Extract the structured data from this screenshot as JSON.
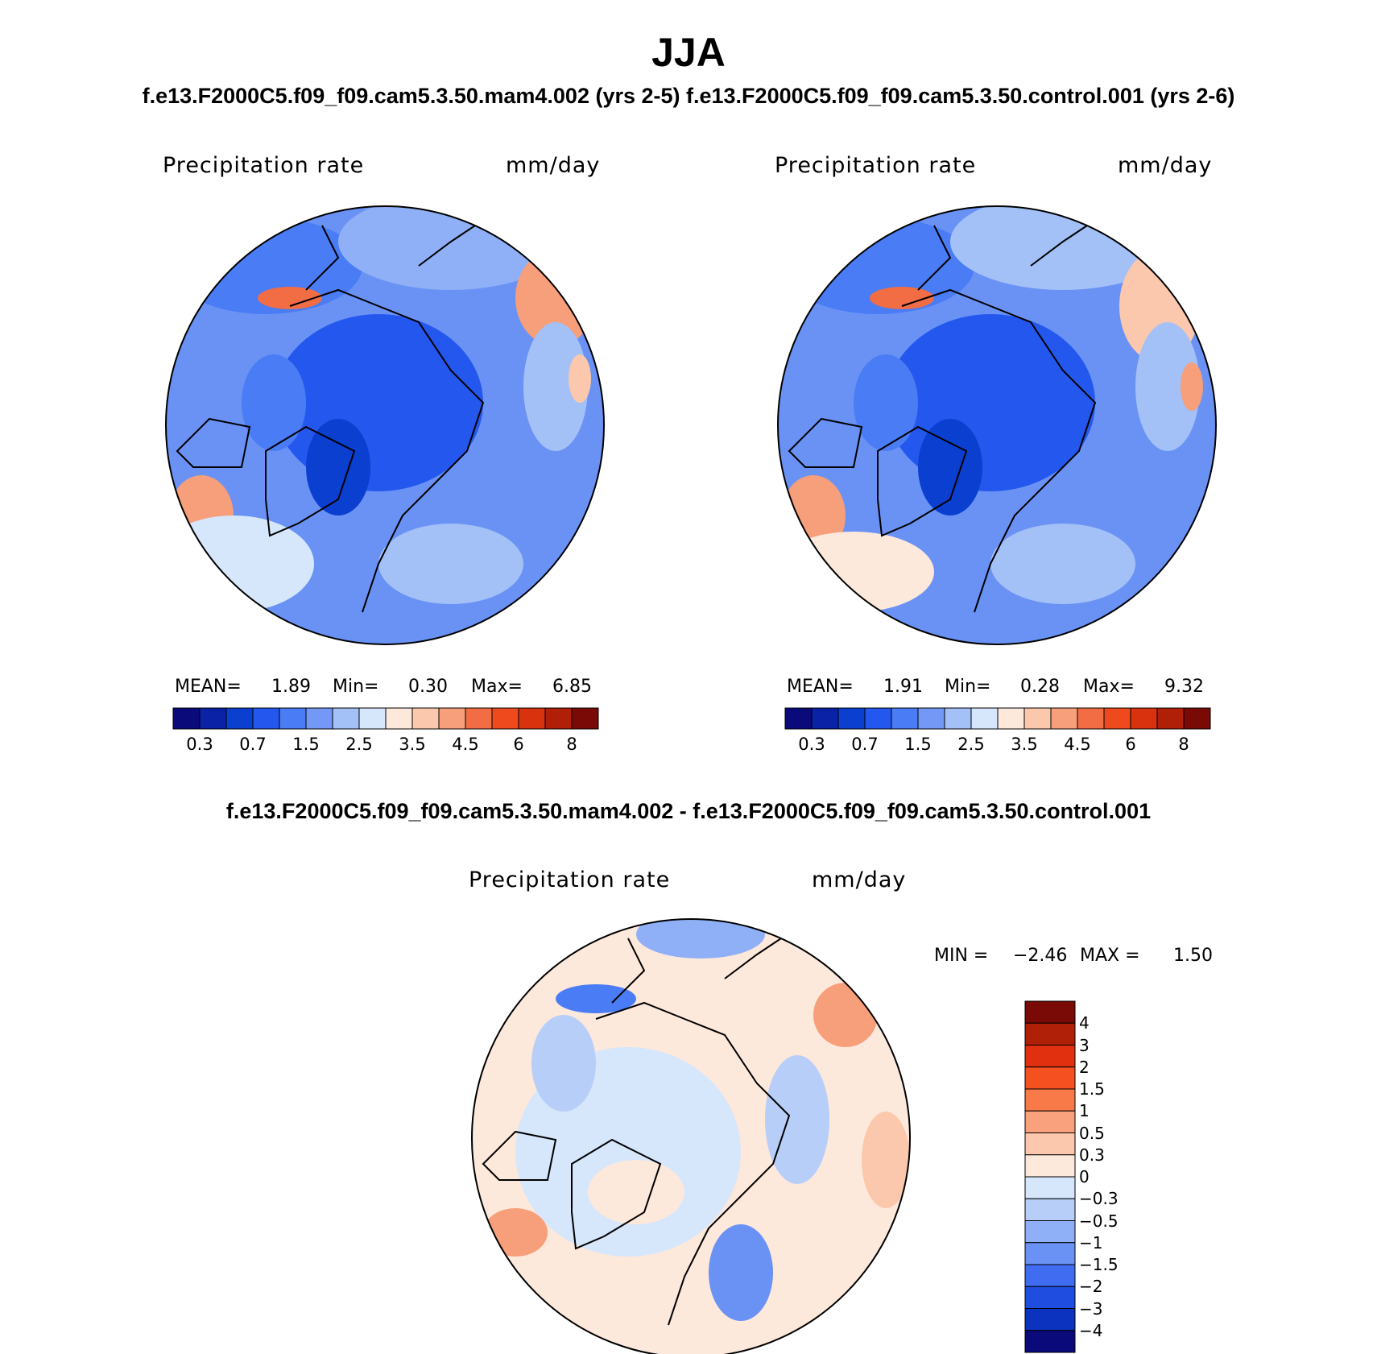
{
  "title": "JJA",
  "top_subtitle": "f.e13.F2000C5.f09_f09.cam5.3.50.mam4.002 (yrs 2-5) f.e13.F2000C5.f09_f09.cam5.3.50.control.001 (yrs 2-6)",
  "diff_subtitle": "f.e13.F2000C5.f09_f09.cam5.3.50.mam4.002 - f.e13.F2000C5.f09_f09.cam5.3.50.control.001",
  "panels": [
    {
      "variable": "Precipitation rate",
      "units": "mm/day",
      "mean_label": "MEAN=",
      "mean": "1.89",
      "min_label": "Min=",
      "min": "0.30",
      "max_label": "Max=",
      "max": "6.85"
    },
    {
      "variable": "Precipitation rate",
      "units": "mm/day",
      "mean_label": "MEAN=",
      "mean": "1.91",
      "min_label": "Min=",
      "min": "0.28",
      "max_label": "Max=",
      "max": "9.32"
    }
  ],
  "diff_panel": {
    "variable": "Precipitation rate",
    "units": "mm/day",
    "min_label": "MIN =",
    "min": "−2.46",
    "max_label": "MAX =",
    "max": "1.50"
  },
  "colorbar_abs": {
    "colors": [
      "#0a0a7a",
      "#0a22a6",
      "#0b3fd0",
      "#2457ee",
      "#4a7cf5",
      "#7398f5",
      "#a3c0f7",
      "#d6e6fb",
      "#fde8dc",
      "#fbc7ad",
      "#f79e7a",
      "#f26c44",
      "#ee4a1e",
      "#d8320f",
      "#b02008",
      "#7a0a06"
    ],
    "ticks": [
      "0.3",
      "0.7",
      "1.5",
      "2.5",
      "3.5",
      "4.5",
      "6",
      "8"
    ]
  },
  "colorbar_diff": {
    "colors": [
      "#7a0a06",
      "#b02008",
      "#e03010",
      "#f45020",
      "#f77a48",
      "#f9a07c",
      "#fbc8ad",
      "#fde8dc",
      "#d6e6fb",
      "#b7cef8",
      "#8fb0f6",
      "#6a92f5",
      "#3f6cf0",
      "#1f4de0",
      "#0c32c0",
      "#0a0a7a"
    ],
    "ticks": [
      "4",
      "3",
      "2",
      "1.5",
      "1",
      "0.5",
      "0.3",
      "0",
      "−0.3",
      "−0.5",
      "−1",
      "−1.5",
      "−2",
      "−3",
      "−4"
    ]
  },
  "map_colors": {
    "deep_blue": "#1f47d9",
    "mid_blue": "#4a7cf5",
    "light_blue": "#8fb0f6",
    "pale_blue": "#d6e6fb",
    "peach": "#fbc7ad",
    "orange": "#f26c44",
    "pale_peach": "#fde8dc"
  }
}
